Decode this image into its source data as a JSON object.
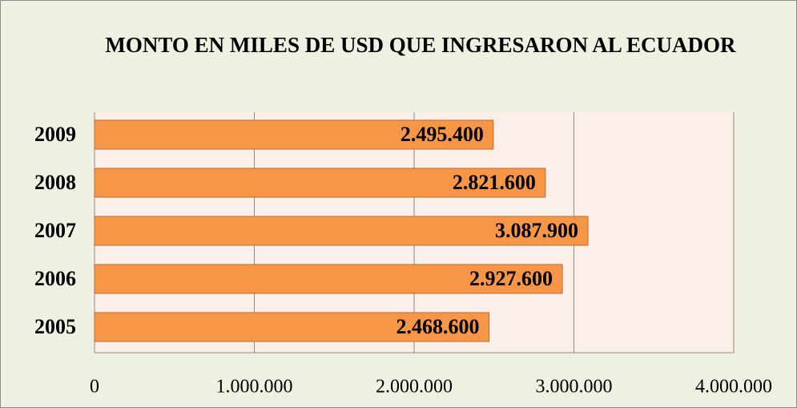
{
  "chart_data": {
    "type": "bar",
    "orientation": "horizontal",
    "title": "MONTO EN MILES DE USD QUE INGRESARON AL ECUADOR",
    "categories": [
      "2009",
      "2008",
      "2007",
      "2006",
      "2005"
    ],
    "values": [
      2495400,
      2821600,
      3087900,
      2927600,
      2468600
    ],
    "value_labels": [
      "2.495.400",
      "2.821.600",
      "3.087.900",
      "2.927.600",
      "2.468.600"
    ],
    "color": "#f79646",
    "xlim": [
      0,
      4000000
    ],
    "xticks": [
      0,
      {
        "value": 1000000,
        "label": "1.000.000"
      },
      {
        "value": 2000000,
        "label": "2.000.000"
      },
      {
        "value": 3000000,
        "label": "3.000.000"
      },
      {
        "value": 4000000,
        "label": "4.000.000"
      }
    ],
    "grid": true
  }
}
